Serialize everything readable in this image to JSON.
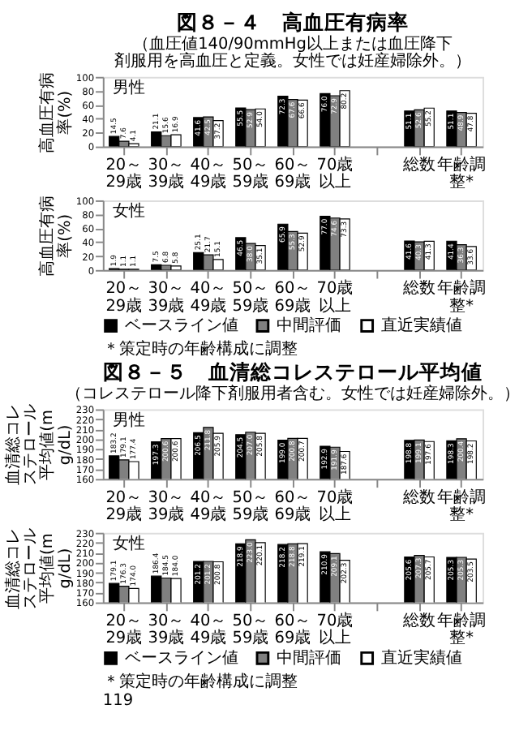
{
  "chart_data": [
    {
      "type": "bar",
      "title": "図８－４　高血圧有病率",
      "subtitle": "（血圧値140/90mmHg以上または血圧降下剤服用を高血圧と定義。女性では妊産婦除外。）",
      "ylabel": "高血圧有病率(%)",
      "categories": [
        "20～29歳",
        "30～39歳",
        "40～49歳",
        "50～59歳",
        "60～69歳",
        "70歳以上",
        null,
        "総数",
        "年齢調整*"
      ],
      "series": [
        {
          "name": "ベースライン値",
          "color": "#000000",
          "values": [
            14.5,
            21.1,
            41.6,
            55.5,
            72.3,
            76.0,
            null,
            51.1,
            51.1
          ],
          "value_labels": [
            "14.5",
            "21.1",
            "41.6",
            "55.5",
            "72.3",
            "76.0",
            null,
            "51.1",
            "51.1"
          ]
        },
        {
          "name": "中間評価",
          "color": "#808080",
          "values": [
            7.6,
            15.6,
            42.5,
            52.9,
            67.6,
            72.9,
            null,
            52.6,
            48.9
          ],
          "value_labels": [
            "7.6",
            "15.6",
            "42.5",
            "52.9",
            "67.6",
            "72.9",
            null,
            "52.6",
            "48.9"
          ]
        },
        {
          "name": "直近実績値",
          "color": "#ffffff",
          "values": [
            4.1,
            16.9,
            37.2,
            54.0,
            66.6,
            80.2,
            null,
            55.2,
            47.8
          ],
          "value_labels": [
            "4.1",
            "16.9",
            "37.2",
            "54.0",
            "66.6",
            "80.2",
            null,
            "55.2",
            "47.8"
          ]
        }
      ],
      "ylim": [
        0,
        100
      ],
      "yticks": [
        0,
        20,
        40,
        60,
        80,
        100
      ],
      "legend": "bottom",
      "annotations": [
        "男性"
      ]
    },
    {
      "type": "bar",
      "ylabel": "高血圧有病率(%)",
      "categories": [
        "20～29歳",
        "30～39歳",
        "40～49歳",
        "50～59歳",
        "60～69歳",
        "70歳以上",
        null,
        "総数",
        "年齢調整*"
      ],
      "series": [
        {
          "name": "ベースライン値",
          "color": "#000000",
          "values": [
            1.9,
            7.5,
            25.1,
            46.5,
            65.9,
            77.0,
            null,
            41.6,
            41.4
          ],
          "value_labels": [
            "1.9",
            "7.5",
            "25.1",
            "46.5",
            "65.9",
            "77.0",
            null,
            "41.6",
            "41.4"
          ]
        },
        {
          "name": "中間評価",
          "color": "#808080",
          "values": [
            1.1,
            6.8,
            21.7,
            38.0,
            55.3,
            74.6,
            null,
            40.3,
            36.3
          ],
          "value_labels": [
            "1.1",
            "6.8",
            "21.7",
            "38.0",
            "55.3",
            "74.6",
            null,
            "40.3",
            "36.3"
          ]
        },
        {
          "name": "直近実績値",
          "color": "#ffffff",
          "values": [
            1.1,
            5.8,
            15.1,
            35.1,
            52.9,
            73.3,
            null,
            41.3,
            33.6
          ],
          "value_labels": [
            "1.1",
            "5.8",
            "15.1",
            "35.1",
            "52.9",
            "73.3",
            null,
            "41.3",
            "33.6"
          ]
        }
      ],
      "ylim": [
        0,
        100
      ],
      "yticks": [
        0,
        20,
        40,
        60,
        80,
        100
      ],
      "legend": "bottom",
      "annotations": [
        "女性",
        "＊策定時の年齢構成に調整"
      ]
    },
    {
      "type": "bar",
      "title": "図８－５　血清総コレステロール平均値",
      "subtitle": "（コレステロール降下剤服用者含む。女性では妊産婦除外。）",
      "ylabel": "血清総コレステロール平均値(mg/dL)",
      "categories": [
        "20～29歳",
        "30～39歳",
        "40～49歳",
        "50～59歳",
        "60～69歳",
        "70歳以上",
        null,
        "総数",
        "年齢調整*"
      ],
      "series": [
        {
          "name": "ベースライン値",
          "color": "#000000",
          "values": [
            183.2,
            197.3,
            206.5,
            204.5,
            199.0,
            192.9,
            null,
            198.8,
            198.3
          ],
          "value_labels": [
            "183.2",
            "197.3",
            "206.5",
            "204.5",
            "199.0",
            "192.9",
            null,
            "198.8",
            "198.3"
          ]
        },
        {
          "name": "中間評価",
          "color": "#808080",
          "values": [
            179.1,
            200.6,
            211.8,
            207.0,
            200.8,
            191.9,
            null,
            199.1,
            200.4
          ],
          "value_labels": [
            "179.1",
            "200.6",
            "211.8",
            "207.0",
            "200.8",
            "191.9",
            null,
            "199.1",
            "200.4"
          ]
        },
        {
          "name": "直近実績値",
          "color": "#ffffff",
          "values": [
            177.4,
            200.6,
            205.9,
            205.8,
            200.7,
            187.6,
            null,
            197.6,
            198.2
          ],
          "value_labels": [
            "177.4",
            "200.6",
            "205.9",
            "205.8",
            "200.7",
            "187.6",
            null,
            "197.6",
            "198.2"
          ]
        }
      ],
      "ylim": [
        160,
        230
      ],
      "yticks": [
        160,
        170,
        180,
        190,
        200,
        210,
        220,
        230
      ],
      "legend": "bottom",
      "annotations": [
        "男性"
      ]
    },
    {
      "type": "bar",
      "ylabel": "血清総コレステロール平均値(mg/dL)",
      "categories": [
        "20～29歳",
        "30～39歳",
        "40～49歳",
        "50～59歳",
        "60～69歳",
        "70歳以上",
        null,
        "総数",
        "年齢調整*"
      ],
      "series": [
        {
          "name": "ベースライン値",
          "color": "#000000",
          "values": [
            179.1,
            186.4,
            201.2,
            218.9,
            218.2,
            210.9,
            null,
            205.6,
            205.3
          ],
          "value_labels": [
            "179.1",
            "186.4",
            "201.2",
            "218.9",
            "218.2",
            "210.9",
            null,
            "205.6",
            "205.3"
          ]
        },
        {
          "name": "中間評価",
          "color": "#808080",
          "values": [
            176.3,
            184.5,
            201.2,
            223.0,
            218.8,
            209.1,
            null,
            207.3,
            205.3
          ],
          "value_labels": [
            "176.3",
            "184.5",
            "201.2",
            "223.0",
            "218.8",
            "209.1",
            null,
            "207.3",
            "205.3"
          ]
        },
        {
          "name": "直近実績値",
          "color": "#ffffff",
          "values": [
            174.0,
            184.0,
            200.8,
            220.1,
            219.1,
            202.3,
            null,
            205.7,
            203.5
          ],
          "value_labels": [
            "174.0",
            "184.0",
            "200.8",
            "220.1",
            "219.1",
            "202.3",
            null,
            "205.7",
            "203.5"
          ]
        }
      ],
      "ylim": [
        160,
        230
      ],
      "yticks": [
        160,
        170,
        180,
        190,
        200,
        210,
        220,
        230
      ],
      "legend": "bottom",
      "annotations": [
        "女性",
        "＊策定時の年齢構成に調整",
        "119"
      ]
    }
  ]
}
